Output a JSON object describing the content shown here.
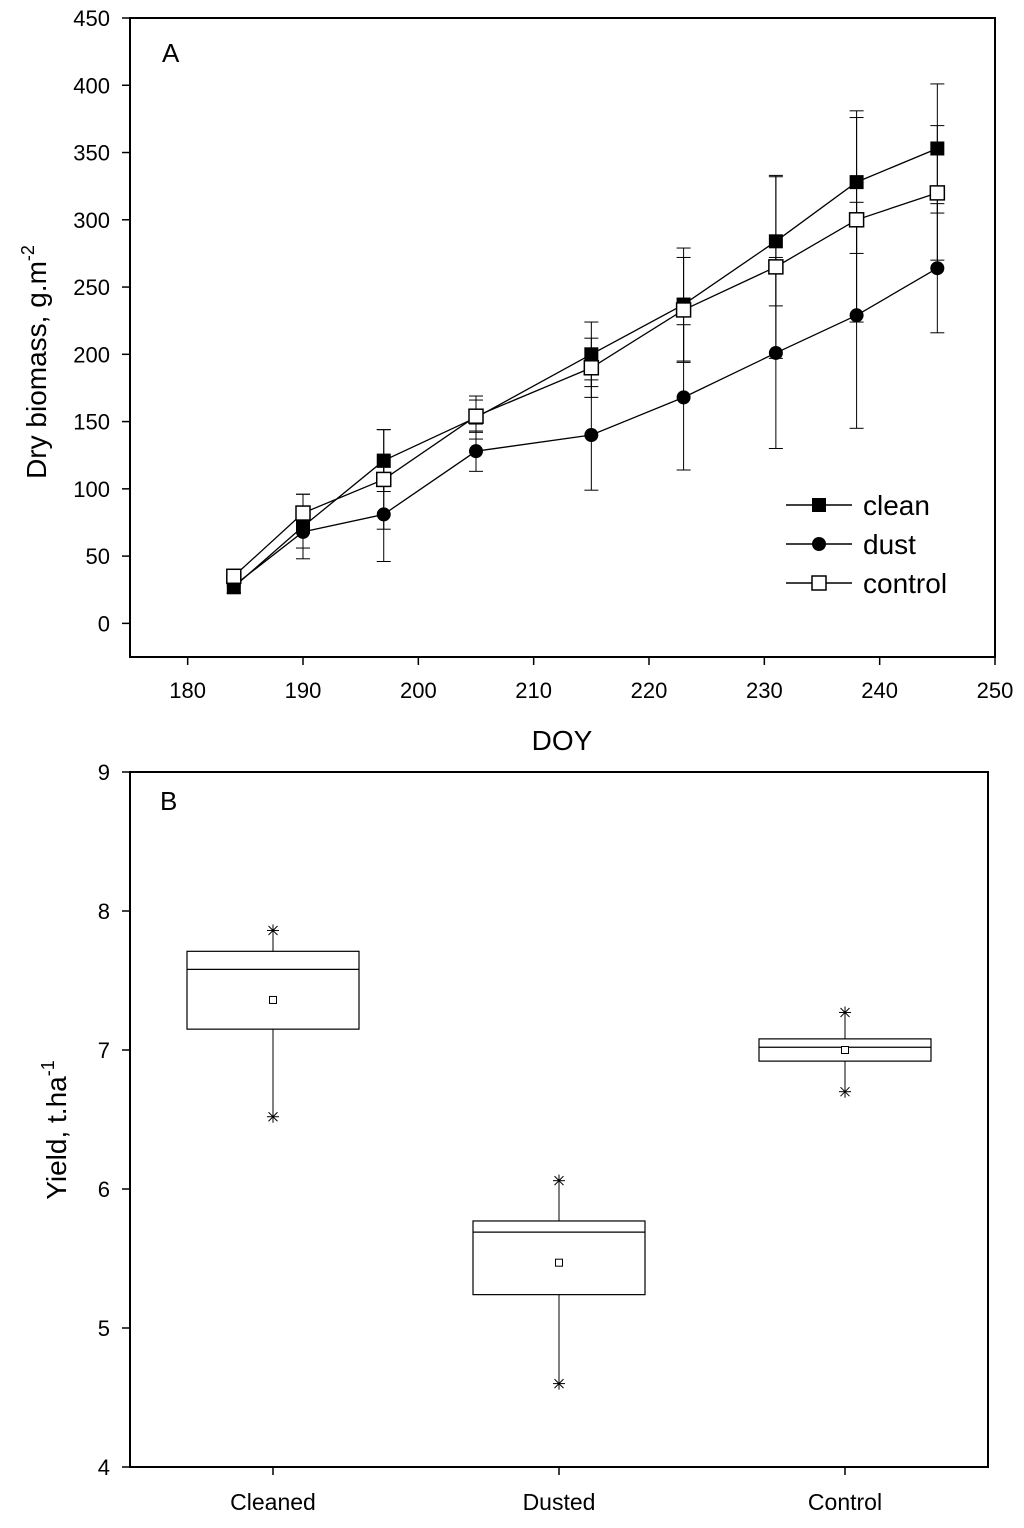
{
  "chart_data": [
    {
      "type": "line",
      "panel_label": "A",
      "xlabel": "DOY",
      "ylabel_main": "Dry biomass, g.m",
      "ylabel_sup": "-2",
      "xlim": [
        175,
        250
      ],
      "ylim": [
        -25,
        450
      ],
      "xticks": [
        180,
        190,
        200,
        210,
        220,
        230,
        240,
        250
      ],
      "yticks": [
        0,
        50,
        100,
        150,
        200,
        250,
        300,
        350,
        400,
        450
      ],
      "legend_position": "bottom-right",
      "error_bars": true,
      "series": [
        {
          "name": "clean",
          "marker": "filled-square",
          "x": [
            184,
            190,
            197,
            205,
            215,
            223,
            231,
            238,
            245
          ],
          "y": [
            27,
            72,
            121,
            153,
            200,
            237,
            284,
            328,
            353
          ],
          "err": [
            5,
            24,
            23,
            16,
            24,
            42,
            48,
            53,
            48
          ]
        },
        {
          "name": "dust",
          "marker": "filled-circle",
          "x": [
            184,
            190,
            197,
            205,
            215,
            223,
            231,
            238,
            245
          ],
          "y": [
            28,
            68,
            81,
            128,
            140,
            168,
            201,
            229,
            264
          ],
          "err": [
            5,
            12,
            35,
            15,
            41,
            54,
            71,
            84,
            48
          ]
        },
        {
          "name": "control",
          "marker": "open-square",
          "x": [
            184,
            190,
            197,
            205,
            215,
            223,
            231,
            238,
            245
          ],
          "y": [
            35,
            82,
            107,
            154,
            190,
            233,
            265,
            300,
            320
          ],
          "err": [
            4,
            14,
            37,
            12,
            22,
            39,
            68,
            76,
            50
          ]
        }
      ]
    },
    {
      "type": "box",
      "panel_label": "B",
      "ylabel_main": "Yield, t.ha",
      "ylabel_sup": "-1",
      "ylim": [
        4,
        9
      ],
      "yticks": [
        4,
        5,
        6,
        7,
        8,
        9
      ],
      "categories": [
        "Cleaned",
        "Dusted",
        "Control"
      ],
      "boxes": [
        {
          "name": "Cleaned",
          "q1": 7.15,
          "median": 7.58,
          "q3": 7.71,
          "whisker_low": 6.52,
          "whisker_high": 7.86,
          "mean": 7.36
        },
        {
          "name": "Dusted",
          "q1": 5.24,
          "median": 5.69,
          "q3": 5.77,
          "whisker_low": 4.6,
          "whisker_high": 6.06,
          "mean": 5.47
        },
        {
          "name": "Control",
          "q1": 6.92,
          "median": 7.02,
          "q3": 7.08,
          "whisker_low": 6.7,
          "whisker_high": 7.27,
          "mean": 7.0
        }
      ]
    }
  ]
}
